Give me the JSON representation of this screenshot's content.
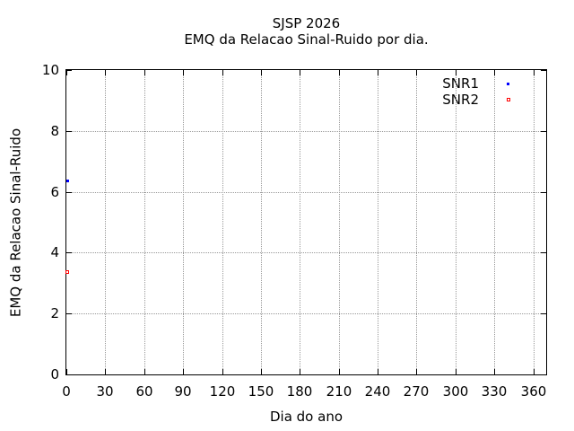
{
  "page": {
    "background": "#ffffff",
    "text_color": "#000000"
  },
  "chart_data": {
    "type": "scatter",
    "title": "SJSP 2026",
    "subtitle": "EMQ da Relacao Sinal-Ruido por dia.",
    "xlabel": "Dia do ano",
    "ylabel": "EMQ da Relacao Sinal-Ruido",
    "xlim": [
      0,
      370
    ],
    "ylim": [
      0,
      10
    ],
    "xticks": [
      0,
      30,
      60,
      90,
      120,
      150,
      180,
      210,
      240,
      270,
      300,
      330,
      360
    ],
    "yticks": [
      0,
      2,
      4,
      6,
      8,
      10
    ],
    "grid": true,
    "grid_style": "dotted",
    "grid_color": "#999999",
    "axis_color": "#000000",
    "legend_position": "top-right-inside",
    "series": [
      {
        "name": "SNR1",
        "color": "#0000ff",
        "marker": "filled-square",
        "points": [
          {
            "x": 1,
            "y": 6.35
          }
        ]
      },
      {
        "name": "SNR2",
        "color": "#ff0000",
        "marker": "open-square",
        "points": [
          {
            "x": 1,
            "y": 3.35
          }
        ]
      }
    ]
  }
}
